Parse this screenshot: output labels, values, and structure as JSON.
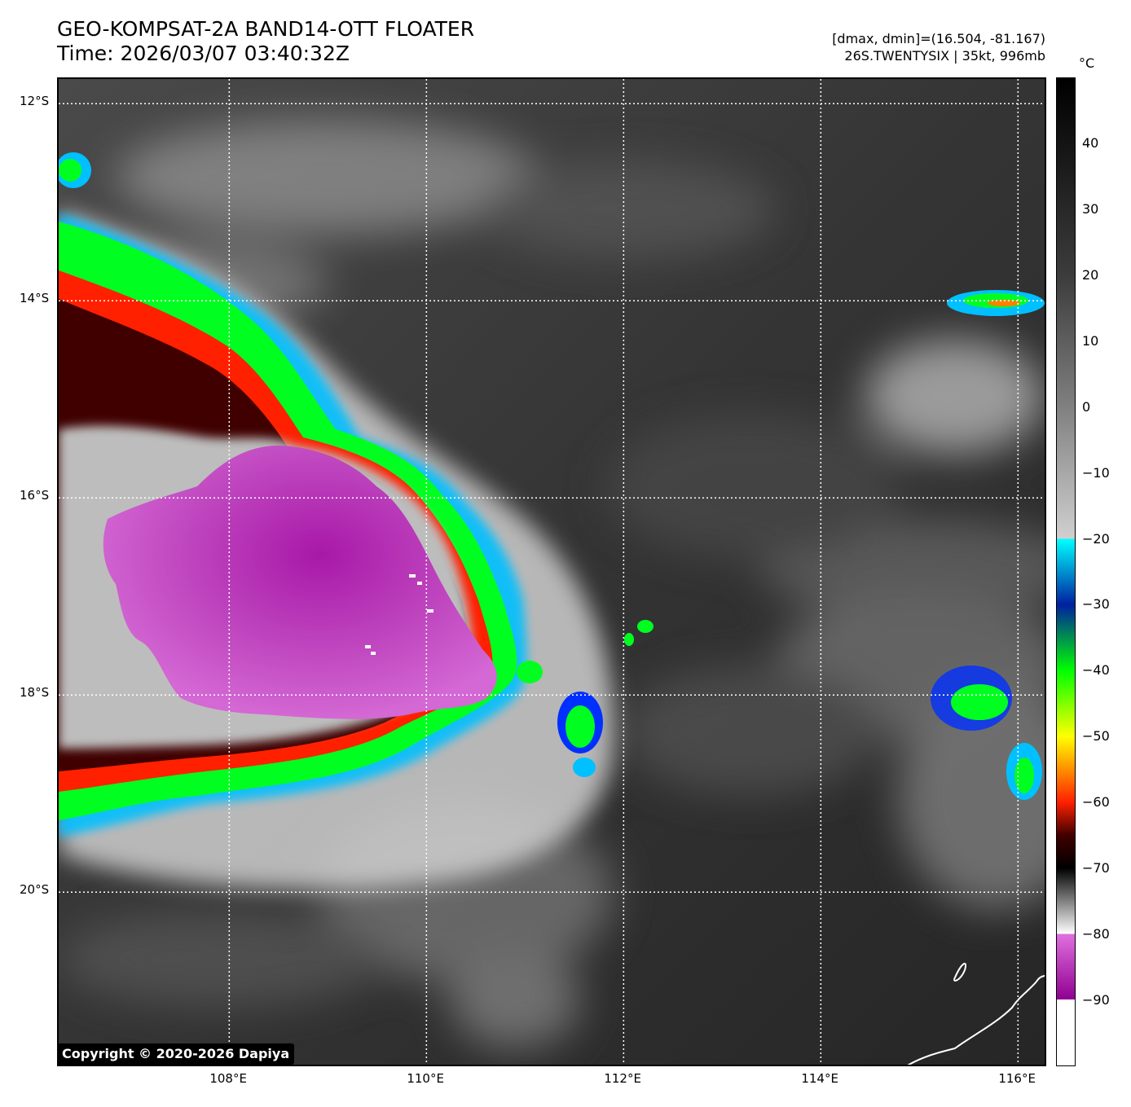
{
  "title": {
    "line1": "GEO-KOMPSAT-2A BAND14-OTT FLOATER",
    "line2": "Time: 2026/03/07 03:40:32Z"
  },
  "meta": {
    "line1": "[dmax, dmin]=(16.504, -81.167)",
    "line2": "26S.TWENTYSIX | 35kt, 996mb"
  },
  "copyright": "Copyright © 2020-2026 Dapiya",
  "map": {
    "lon_range": [
      106.27,
      116.27
    ],
    "lat_range": [
      -11.75,
      -21.75
    ],
    "lon_ticks": [
      {
        "value": 108,
        "label": "108°E"
      },
      {
        "value": 110,
        "label": "110°E"
      },
      {
        "value": 112,
        "label": "112°E"
      },
      {
        "value": 114,
        "label": "114°E"
      },
      {
        "value": 116,
        "label": "116°E"
      }
    ],
    "lat_ticks": [
      {
        "value": -12,
        "label": "12°S"
      },
      {
        "value": -14,
        "label": "14°S"
      },
      {
        "value": -16,
        "label": "16°S"
      },
      {
        "value": -18,
        "label": "18°S"
      },
      {
        "value": -20,
        "label": "20°S"
      }
    ]
  },
  "colorbar": {
    "unit": "°C",
    "range": [
      -100,
      50
    ],
    "ticks": [
      {
        "value": 40,
        "label": "40"
      },
      {
        "value": 30,
        "label": "30"
      },
      {
        "value": 20,
        "label": "20"
      },
      {
        "value": 10,
        "label": "10"
      },
      {
        "value": 0,
        "label": "0"
      },
      {
        "value": -10,
        "label": "−10"
      },
      {
        "value": -20,
        "label": "−20"
      },
      {
        "value": -30,
        "label": "−30"
      },
      {
        "value": -40,
        "label": "−40"
      },
      {
        "value": -50,
        "label": "−50"
      },
      {
        "value": -60,
        "label": "−60"
      },
      {
        "value": -70,
        "label": "−70"
      },
      {
        "value": -80,
        "label": "−80"
      },
      {
        "value": -90,
        "label": "−90"
      }
    ]
  }
}
